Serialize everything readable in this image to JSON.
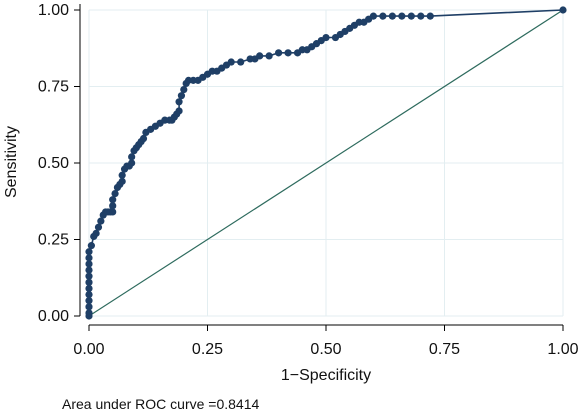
{
  "chart_data": {
    "type": "line",
    "xlabel": "1−Specificity",
    "ylabel": "Sensitivity",
    "xlim": [
      0,
      1
    ],
    "ylim": [
      0,
      1
    ],
    "x_ticks": [
      "0.00",
      "0.25",
      "0.50",
      "0.75",
      "1.00"
    ],
    "y_ticks": [
      "0.00",
      "0.25",
      "0.50",
      "0.75",
      "1.00"
    ],
    "grid": true,
    "note": "Area under ROC curve =0.8414",
    "colors": {
      "curve": "#1f3f66",
      "reference": "#2e6b5e",
      "grid": "#e3eef1"
    },
    "series": [
      {
        "x": [
          0,
          0,
          0,
          0,
          0,
          0,
          0,
          0,
          0,
          0,
          0,
          0,
          0.005,
          0.01,
          0.015,
          0.02,
          0.025,
          0.03,
          0.035,
          0.04,
          0.045,
          0.05,
          0.05,
          0.05,
          0.055,
          0.06,
          0.065,
          0.07,
          0.07,
          0.075,
          0.08,
          0.085,
          0.09,
          0.09,
          0.095,
          0.1,
          0.105,
          0.11,
          0.115,
          0.12,
          0.13,
          0.14,
          0.15,
          0.16,
          0.17,
          0.175,
          0.18,
          0.185,
          0.19,
          0.19,
          0.195,
          0.2,
          0.205,
          0.21,
          0.22,
          0.23,
          0.24,
          0.25,
          0.26,
          0.27,
          0.28,
          0.29,
          0.3,
          0.32,
          0.34,
          0.35,
          0.36,
          0.38,
          0.4,
          0.42,
          0.44,
          0.45,
          0.46,
          0.47,
          0.48,
          0.49,
          0.5,
          0.52,
          0.53,
          0.54,
          0.55,
          0.56,
          0.57,
          0.58,
          0.59,
          0.6,
          0.62,
          0.64,
          0.66,
          0.68,
          0.7,
          0.72,
          1.0
        ],
        "y": [
          0,
          0.01,
          0.03,
          0.05,
          0.07,
          0.09,
          0.11,
          0.13,
          0.15,
          0.17,
          0.19,
          0.21,
          0.23,
          0.26,
          0.27,
          0.29,
          0.31,
          0.33,
          0.34,
          0.34,
          0.34,
          0.34,
          0.36,
          0.38,
          0.4,
          0.42,
          0.43,
          0.44,
          0.46,
          0.48,
          0.49,
          0.49,
          0.5,
          0.52,
          0.54,
          0.55,
          0.56,
          0.57,
          0.58,
          0.6,
          0.61,
          0.62,
          0.63,
          0.64,
          0.64,
          0.64,
          0.65,
          0.66,
          0.67,
          0.7,
          0.72,
          0.74,
          0.76,
          0.77,
          0.77,
          0.77,
          0.78,
          0.79,
          0.8,
          0.8,
          0.81,
          0.82,
          0.83,
          0.83,
          0.84,
          0.84,
          0.85,
          0.85,
          0.86,
          0.86,
          0.86,
          0.87,
          0.87,
          0.88,
          0.89,
          0.9,
          0.91,
          0.91,
          0.92,
          0.93,
          0.94,
          0.95,
          0.96,
          0.96,
          0.97,
          0.98,
          0.98,
          0.98,
          0.98,
          0.98,
          0.98,
          0.98,
          1.0
        ]
      }
    ]
  }
}
